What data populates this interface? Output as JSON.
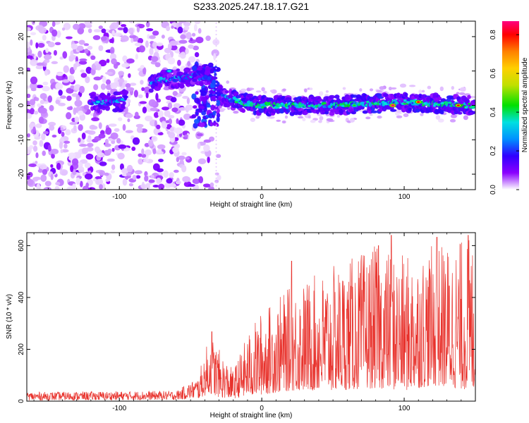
{
  "figure_title": "S233.2025.247.18.17.G21",
  "chart_data": [
    {
      "type": "heatmap",
      "title": "S233.2025.247.18.17.G21",
      "xlabel": "Height of straight line (km)",
      "ylabel": "Frequency (Hz)",
      "xlim": [
        -165,
        150
      ],
      "ylim": [
        -24.5,
        24.5
      ],
      "xticks": [
        -100,
        0,
        100
      ],
      "yticks": [
        -20,
        -10,
        0,
        10,
        20
      ],
      "colorbar": {
        "label": "Normalized spectral amplitude",
        "range": [
          0.0,
          0.87
        ],
        "ticks": [
          0.0,
          0.2,
          0.4,
          0.6,
          0.8
        ]
      },
      "ridge": {
        "description_points": [
          {
            "x": -125,
            "freq": 1
          },
          {
            "x": -100,
            "freq": 1
          },
          {
            "x": -75,
            "freq": 7
          },
          {
            "x": -55,
            "freq": 8
          },
          {
            "x": -38,
            "freq": 9
          },
          {
            "x": -30,
            "freq": 3
          },
          {
            "x": -15,
            "freq": 1
          },
          {
            "x": 0,
            "freq": 0
          },
          {
            "x": 50,
            "freq": 0
          },
          {
            "x": 100,
            "freq": 1
          },
          {
            "x": 145,
            "freq": 0
          }
        ],
        "peaks": [
          {
            "x": 92,
            "freq": 0,
            "amplitude": 0.87
          },
          {
            "x": 110,
            "freq": 1,
            "amplitude": 0.8
          },
          {
            "x": 138,
            "freq": 0,
            "amplitude": 0.8
          },
          {
            "x": 65,
            "freq": 0,
            "amplitude": 0.45
          },
          {
            "x": -65,
            "freq": 10,
            "amplitude": 0.35
          },
          {
            "x": -115,
            "freq": 1,
            "amplitude": 0.35
          }
        ]
      }
    },
    {
      "type": "line",
      "xlabel": "Height of straight line (km)",
      "ylabel": "SNR (10 * v/v)",
      "xlim": [
        -165,
        150
      ],
      "ylim": [
        0,
        650
      ],
      "xticks": [
        -100,
        0,
        100
      ],
      "yticks": [
        0,
        200,
        400,
        600
      ],
      "color": "#e8322c",
      "series_envelope": [
        {
          "x": -165,
          "lo": 3,
          "hi": 35
        },
        {
          "x": -60,
          "lo": 5,
          "hi": 40
        },
        {
          "x": -45,
          "lo": 10,
          "hi": 90
        },
        {
          "x": -36,
          "lo": 30,
          "hi": 270
        },
        {
          "x": -30,
          "lo": 15,
          "hi": 200
        },
        {
          "x": -20,
          "lo": 10,
          "hi": 120
        },
        {
          "x": -10,
          "lo": 20,
          "hi": 260
        },
        {
          "x": 0,
          "lo": 25,
          "hi": 350
        },
        {
          "x": 20,
          "lo": 40,
          "hi": 440
        },
        {
          "x": 50,
          "lo": 40,
          "hi": 520
        },
        {
          "x": 80,
          "lo": 50,
          "hi": 600
        },
        {
          "x": 100,
          "lo": 40,
          "hi": 560
        },
        {
          "x": 120,
          "lo": 60,
          "hi": 600
        },
        {
          "x": 150,
          "lo": 40,
          "hi": 640
        }
      ],
      "peaks": [
        {
          "x": 91,
          "value": 640
        },
        {
          "x": 123,
          "value": 632
        },
        {
          "x": 145,
          "value": 640
        },
        {
          "x": 21,
          "value": 540
        },
        {
          "x": 82,
          "value": 600
        },
        {
          "x": -35,
          "value": 268
        }
      ]
    }
  ]
}
